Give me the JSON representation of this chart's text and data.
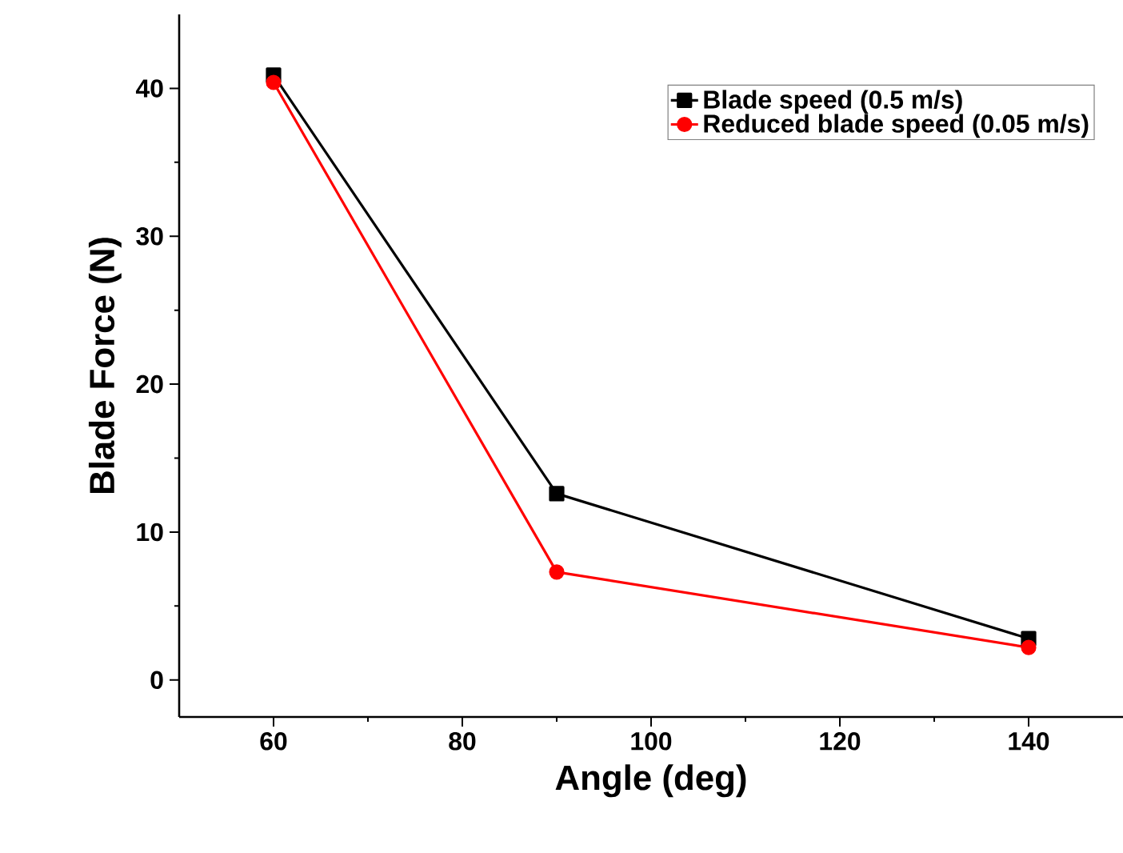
{
  "chart_data": {
    "type": "line",
    "xlabel": "Angle (deg)",
    "ylabel": "Blade Force (N)",
    "xlim": [
      50,
      150
    ],
    "xticks": [
      60,
      80,
      100,
      120,
      140
    ],
    "ylim": [
      -2.5,
      45
    ],
    "yticks": [
      0,
      10,
      20,
      30,
      40
    ],
    "legend": "top right",
    "grid": false,
    "series": [
      {
        "name": "Blade speed (0.5 m/s)",
        "color": "#000000",
        "marker": "square",
        "x": [
          60,
          90,
          140
        ],
        "values": [
          40.9,
          12.6,
          2.8
        ]
      },
      {
        "name": "Reduced blade speed (0.05 m/s)",
        "color": "#ff0000",
        "marker": "circle",
        "x": [
          60,
          90,
          140
        ],
        "values": [
          40.4,
          7.3,
          2.2
        ]
      }
    ]
  }
}
